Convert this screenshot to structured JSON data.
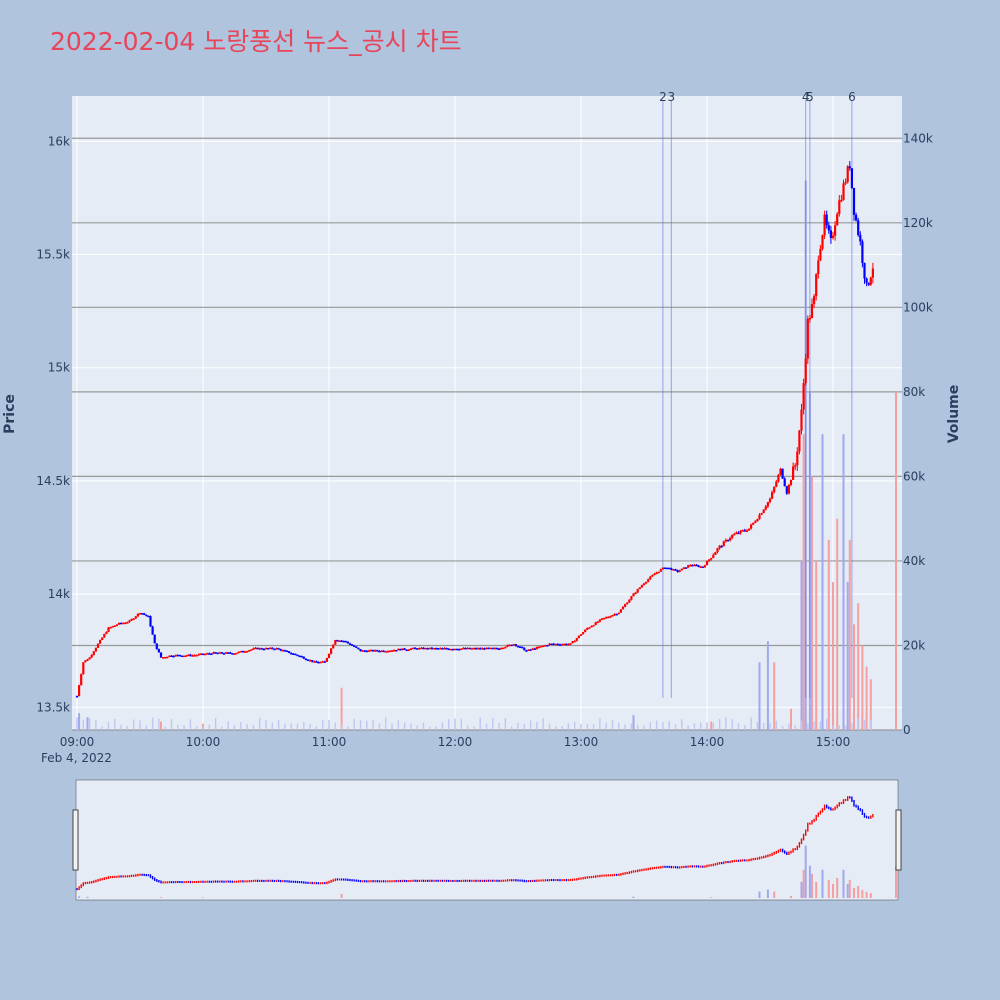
{
  "title": "2022-02-04 노랑풍선 뉴스_공시 차트",
  "colors": {
    "paper": "#b0c4de",
    "plot_bg": "#e5ecf6",
    "title": "#e8445a",
    "up": "#ff0000",
    "down": "#0000ff",
    "grid": "#ffffff",
    "volume_grid": "#999999",
    "event_line": "#5a6fe0"
  },
  "chart_data": {
    "type": "candlestick",
    "x_axis": {
      "ticks": [
        "09:00",
        "10:00",
        "11:00",
        "12:00",
        "13:00",
        "14:00",
        "15:00"
      ],
      "date_label": "Feb 4, 2022",
      "range": [
        "09:00",
        "15:30"
      ]
    },
    "y_axis": {
      "title": "Price",
      "ticks": [
        "13.5k",
        "14k",
        "14.5k",
        "15k",
        "15.5k",
        "16k"
      ],
      "tick_values": [
        13500,
        14000,
        14500,
        15000,
        15500,
        16000
      ],
      "range": [
        13400,
        16200
      ]
    },
    "y2_axis": {
      "title": "Volume",
      "ticks": [
        "0",
        "20k",
        "40k",
        "60k",
        "80k",
        "100k",
        "120k",
        "140k"
      ],
      "tick_values": [
        0,
        20000,
        40000,
        60000,
        80000,
        100000,
        120000,
        140000
      ],
      "range": [
        0,
        150000
      ]
    },
    "event_markers": [
      {
        "label": "2",
        "time": "13:39"
      },
      {
        "label": "3",
        "time": "13:43"
      },
      {
        "label": "4",
        "time": "14:47"
      },
      {
        "label": "5",
        "time": "14:49"
      },
      {
        "label": "6",
        "time": "15:09"
      }
    ],
    "price_path": [
      [
        "09:00",
        13550
      ],
      [
        "09:03",
        13700
      ],
      [
        "09:06",
        13720
      ],
      [
        "09:10",
        13780
      ],
      [
        "09:15",
        13850
      ],
      [
        "09:20",
        13870
      ],
      [
        "09:25",
        13880
      ],
      [
        "09:30",
        13920
      ],
      [
        "09:34",
        13900
      ],
      [
        "09:37",
        13780
      ],
      [
        "09:40",
        13720
      ],
      [
        "09:45",
        13730
      ],
      [
        "09:55",
        13730
      ],
      [
        "10:05",
        13740
      ],
      [
        "10:15",
        13740
      ],
      [
        "10:25",
        13760
      ],
      [
        "10:35",
        13760
      ],
      [
        "10:45",
        13730
      ],
      [
        "10:53",
        13700
      ],
      [
        "10:58",
        13700
      ],
      [
        "11:03",
        13800
      ],
      [
        "11:08",
        13790
      ],
      [
        "11:15",
        13750
      ],
      [
        "11:25",
        13750
      ],
      [
        "11:40",
        13760
      ],
      [
        "11:55",
        13760
      ],
      [
        "12:10",
        13760
      ],
      [
        "12:20",
        13760
      ],
      [
        "12:28",
        13780
      ],
      [
        "12:34",
        13750
      ],
      [
        "12:45",
        13780
      ],
      [
        "12:55",
        13780
      ],
      [
        "13:03",
        13850
      ],
      [
        "13:10",
        13890
      ],
      [
        "13:18",
        13920
      ],
      [
        "13:25",
        14000
      ],
      [
        "13:30",
        14050
      ],
      [
        "13:35",
        14090
      ],
      [
        "13:40",
        14120
      ],
      [
        "13:46",
        14100
      ],
      [
        "13:52",
        14130
      ],
      [
        "13:58",
        14120
      ],
      [
        "14:05",
        14200
      ],
      [
        "14:12",
        14260
      ],
      [
        "14:20",
        14290
      ],
      [
        "14:25",
        14350
      ],
      [
        "14:30",
        14420
      ],
      [
        "14:35",
        14550
      ],
      [
        "14:38",
        14450
      ],
      [
        "14:42",
        14570
      ],
      [
        "14:45",
        14800
      ],
      [
        "14:48",
        15200
      ],
      [
        "14:51",
        15300
      ],
      [
        "14:53",
        15500
      ],
      [
        "14:56",
        15650
      ],
      [
        "14:59",
        15550
      ],
      [
        "15:02",
        15700
      ],
      [
        "15:05",
        15800
      ],
      [
        "15:08",
        15900
      ],
      [
        "15:10",
        15700
      ],
      [
        "15:13",
        15550
      ],
      [
        "15:16",
        15350
      ],
      [
        "15:19",
        15450
      ]
    ],
    "volume_spikes": [
      [
        "09:01",
        4000
      ],
      [
        "09:05",
        3000
      ],
      [
        "09:40",
        2000
      ],
      [
        "10:00",
        1500
      ],
      [
        "11:06",
        10000
      ],
      [
        "13:25",
        3500
      ],
      [
        "14:02",
        2000
      ],
      [
        "14:25",
        16000
      ],
      [
        "14:29",
        21000
      ],
      [
        "14:32",
        16000
      ],
      [
        "14:40",
        5000
      ],
      [
        "14:45",
        40000
      ],
      [
        "14:46",
        70000
      ],
      [
        "14:47",
        130000
      ],
      [
        "14:49",
        80000
      ],
      [
        "14:50",
        60000
      ],
      [
        "14:52",
        40000
      ],
      [
        "14:55",
        70000
      ],
      [
        "14:58",
        45000
      ],
      [
        "15:00",
        35000
      ],
      [
        "15:02",
        50000
      ],
      [
        "15:05",
        70000
      ],
      [
        "15:07",
        35000
      ],
      [
        "15:08",
        45000
      ],
      [
        "15:10",
        25000
      ],
      [
        "15:12",
        30000
      ],
      [
        "15:14",
        20000
      ],
      [
        "15:16",
        15000
      ],
      [
        "15:18",
        12000
      ],
      [
        "15:30",
        80000
      ]
    ]
  }
}
